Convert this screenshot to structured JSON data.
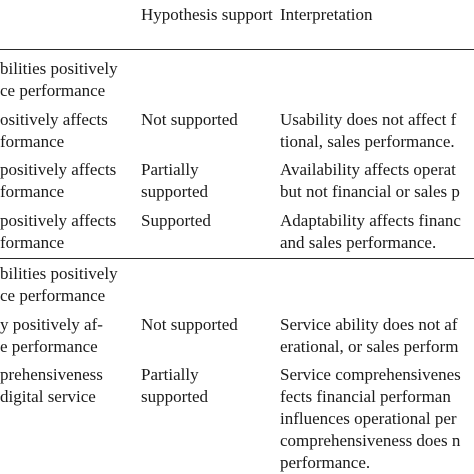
{
  "table": {
    "headers": {
      "support": [
        "Hypothesis",
        "support"
      ],
      "interpretation": [
        "Interpretation"
      ]
    },
    "sections": [
      {
        "heading": [
          "bilities positively",
          "ce performance"
        ],
        "rows": [
          {
            "hypothesis": [
              "ositively affects",
              "formance"
            ],
            "support": [
              "Not supported"
            ],
            "interpretation": [
              "Usability does not affect f",
              "tional, sales performance."
            ]
          },
          {
            "hypothesis": [
              "positively affects",
              "formance"
            ],
            "support": [
              "Partially",
              "supported"
            ],
            "interpretation": [
              "Availability affects operat",
              "but not financial or sales p"
            ]
          },
          {
            "hypothesis": [
              " positively affects",
              "formance"
            ],
            "support": [
              "Supported"
            ],
            "interpretation": [
              "Adaptability affects financ",
              "and sales performance."
            ]
          }
        ]
      },
      {
        "heading": [
          "bilities positively",
          "ce performance"
        ],
        "rows": [
          {
            "hypothesis": [
              "y positively af-",
              "e performance"
            ],
            "support": [
              "Not supported"
            ],
            "interpretation": [
              "Service ability does not af",
              "erational, or sales perform"
            ]
          },
          {
            "hypothesis": [
              "prehensiveness",
              "digital service"
            ],
            "support": [
              "Partially",
              "supported"
            ],
            "interpretation": [
              "Service comprehensivenes",
              "fects financial performan",
              "influences operational per",
              "comprehensiveness does n",
              "performance."
            ]
          }
        ]
      }
    ]
  }
}
